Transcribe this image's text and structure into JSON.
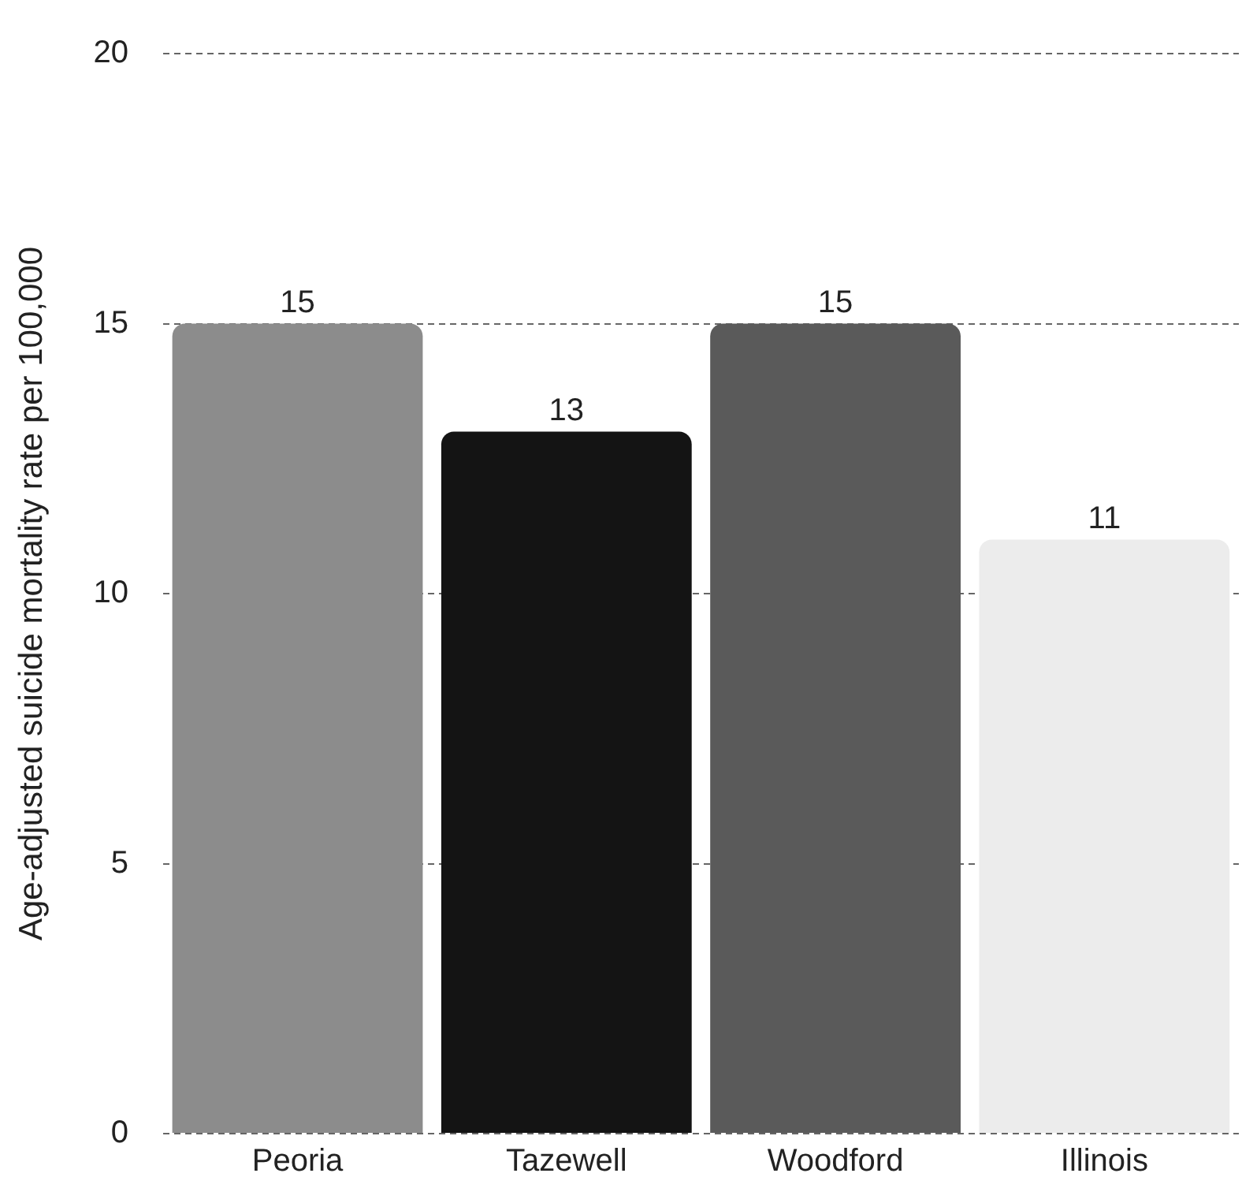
{
  "chart_data": {
    "type": "bar",
    "ylabel": "Age-adjusted suicide mortality rate per 100,000",
    "categories": [
      "Peoria",
      "Tazewell",
      "Woodford",
      "Illinois"
    ],
    "values": [
      15,
      13,
      15,
      11
    ],
    "colors": [
      "#8c8c8c",
      "#141414",
      "#5a5a5a",
      "#ececec"
    ],
    "ylim": [
      0,
      20
    ],
    "yticks": [
      0,
      5,
      10,
      15,
      20
    ],
    "grid": "y",
    "data_labels": true,
    "legend": false
  }
}
